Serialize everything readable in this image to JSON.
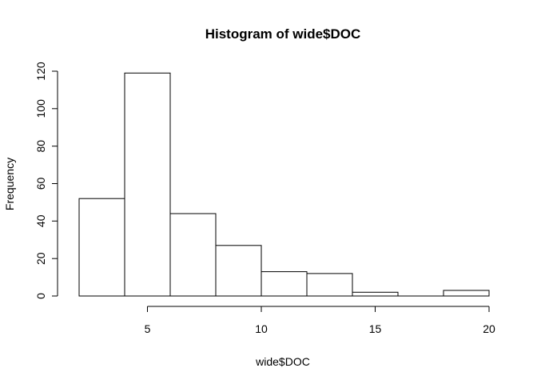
{
  "chart_data": {
    "type": "bar",
    "title": "Histogram of wide$DOC",
    "xlabel": "wide$DOC",
    "ylabel": "Frequency",
    "bins": [
      [
        2,
        4
      ],
      [
        4,
        6
      ],
      [
        6,
        8
      ],
      [
        8,
        10
      ],
      [
        10,
        12
      ],
      [
        12,
        14
      ],
      [
        14,
        16
      ],
      [
        16,
        18
      ],
      [
        18,
        20
      ]
    ],
    "values": [
      52,
      119,
      44,
      27,
      13,
      12,
      2,
      0,
      3
    ],
    "xlim": [
      2,
      20
    ],
    "ylim": [
      0,
      120
    ],
    "x_ticks": [
      5,
      10,
      15,
      20
    ],
    "y_ticks": [
      0,
      20,
      40,
      60,
      80,
      100,
      120
    ],
    "grid": false,
    "legend": "none"
  }
}
